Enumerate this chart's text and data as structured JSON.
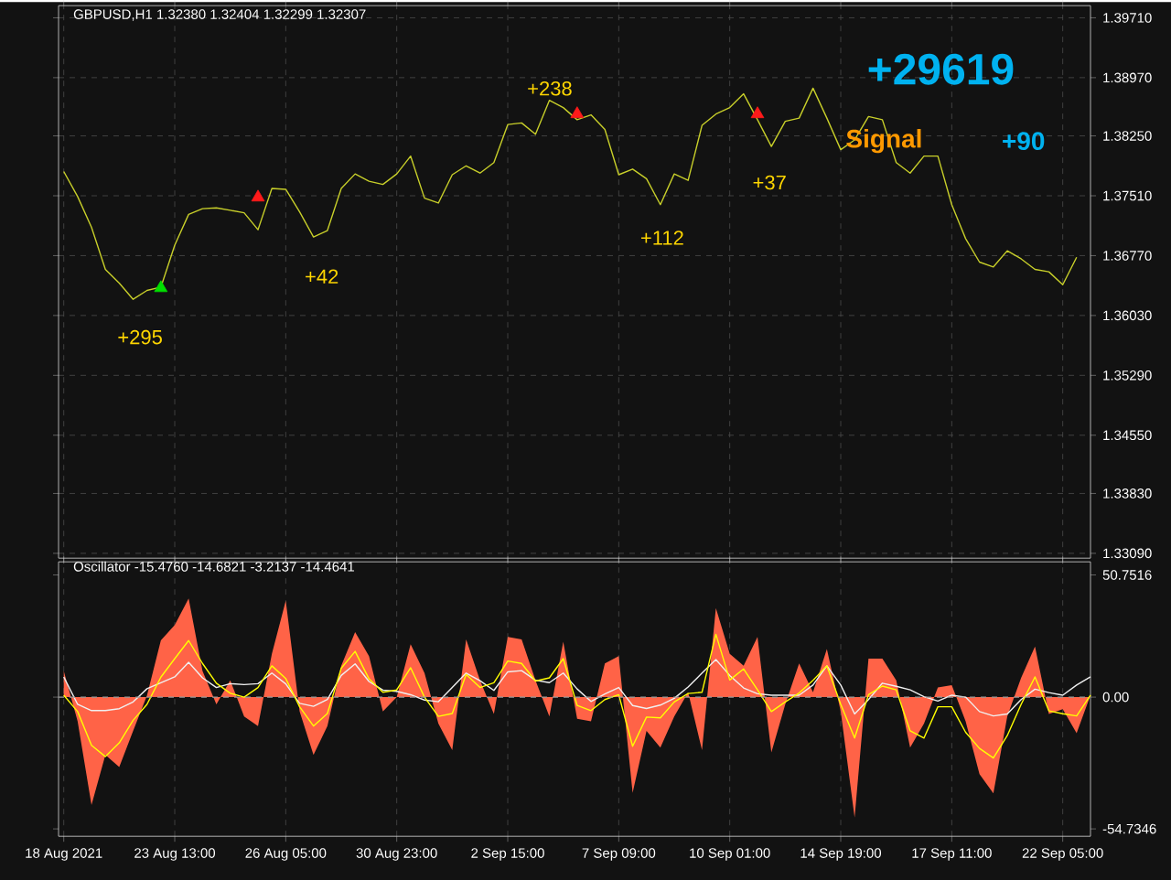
{
  "chart_data": [
    {
      "type": "line",
      "title": "GBPUSD,H1  1.32380 1.32404 1.32299 1.32307",
      "categories": [
        null,
        null,
        null,
        null,
        null,
        null,
        null,
        null,
        null,
        null,
        null,
        null,
        null,
        null,
        null,
        null,
        null,
        null,
        null,
        null,
        null,
        null,
        null,
        null,
        null,
        null,
        null,
        null,
        null,
        null,
        null,
        null,
        null,
        null,
        null,
        null,
        null,
        null,
        null,
        null,
        null,
        null,
        null,
        null,
        null,
        null,
        null,
        null,
        null,
        null,
        null,
        null,
        null,
        null,
        null,
        null,
        null,
        null,
        null,
        null,
        null,
        null,
        null,
        null,
        null,
        null,
        null,
        null,
        null,
        null,
        null,
        null,
        null,
        null,
        null
      ],
      "series": [
        {
          "color": "#c8cf2a",
          "values": [
            1.3781,
            1.375,
            1.3712,
            1.366,
            1.3643,
            1.3623,
            1.3634,
            1.3638,
            1.369,
            1.3728,
            1.3735,
            1.3736,
            1.3733,
            1.373,
            1.3709,
            1.376,
            1.3759,
            1.3731,
            1.37,
            1.3708,
            1.376,
            1.3778,
            1.3769,
            1.3765,
            1.3778,
            1.38,
            1.3748,
            1.3742,
            1.3777,
            1.3788,
            1.3779,
            1.3792,
            1.3839,
            1.3841,
            1.3827,
            1.3869,
            1.386,
            1.3845,
            1.3851,
            1.3833,
            1.3777,
            1.3784,
            1.3772,
            1.374,
            1.3778,
            1.377,
            1.3838,
            1.3852,
            1.386,
            1.3877,
            1.3845,
            1.3812,
            1.3843,
            1.3847,
            1.3884,
            1.3847,
            1.3808,
            1.382,
            1.3849,
            1.3845,
            1.3792,
            1.3779,
            1.38,
            1.38,
            1.374,
            1.3698,
            1.3669,
            1.3663,
            1.3683,
            1.3673,
            1.366,
            1.3657,
            1.3641,
            1.3675,
            null
          ]
        },
        {
          "type": "scatter",
          "marker": "triangle",
          "color": "#00e000",
          "values": [
            null,
            null,
            null,
            null,
            null,
            null,
            null,
            1.3637,
            null,
            null,
            null,
            null,
            null,
            null,
            null,
            null,
            null,
            null,
            null,
            null,
            null,
            null,
            null,
            null,
            null,
            null,
            null,
            null,
            null,
            null,
            null,
            null,
            null,
            null,
            null,
            null,
            null,
            null,
            null,
            null,
            null,
            null,
            null,
            null,
            null,
            null,
            null,
            null,
            null,
            null,
            null,
            null,
            null,
            null,
            null,
            null,
            null,
            null,
            null,
            null,
            null,
            null,
            null,
            null,
            null,
            null,
            null,
            null,
            null,
            null,
            null,
            null,
            null,
            null,
            null
          ]
        },
        {
          "type": "scatter",
          "marker": "triangle",
          "color": "#ff1a1a",
          "values": [
            null,
            null,
            null,
            null,
            null,
            null,
            null,
            null,
            null,
            null,
            null,
            null,
            null,
            null,
            1.3749,
            null,
            null,
            null,
            null,
            null,
            null,
            null,
            null,
            null,
            null,
            null,
            null,
            null,
            null,
            null,
            null,
            null,
            null,
            null,
            null,
            null,
            null,
            1.3852,
            null,
            null,
            null,
            null,
            null,
            null,
            null,
            null,
            null,
            null,
            null,
            null,
            1.3852,
            null,
            null,
            null,
            null,
            null,
            null,
            null,
            null,
            null,
            null,
            null,
            null,
            null,
            null,
            null,
            null,
            null,
            null,
            null,
            null,
            null,
            null,
            null,
            null
          ]
        }
      ],
      "annotations": [
        "+295",
        "+42",
        "+238",
        "+112",
        "+37",
        "+29619",
        "Signal",
        "+90"
      ],
      "ylim": [
        1.3303,
        1.3986
      ],
      "yticks": [
        {
          "value": 1.3971,
          "label": "1.39710"
        },
        {
          "value": 1.3897,
          "label": "1.38970"
        },
        {
          "value": 1.3825,
          "label": "1.38250"
        },
        {
          "value": 1.3751,
          "label": "1.37510"
        },
        {
          "value": 1.3677,
          "label": "1.36770"
        },
        {
          "value": 1.3603,
          "label": "1.36030"
        },
        {
          "value": 1.3529,
          "label": "1.35290"
        },
        {
          "value": 1.3455,
          "label": "1.34550"
        },
        {
          "value": 1.3383,
          "label": "1.33830"
        },
        {
          "value": 1.3309,
          "label": "1.33090"
        }
      ],
      "grid": true,
      "tick_labels": "y"
    },
    {
      "type": "line",
      "title": "Oscillator -15.4760 -14.6821 -3.2137 -14.4641",
      "categories": [
        "18 Aug 2021",
        null,
        null,
        null,
        null,
        null,
        null,
        null,
        "23 Aug 13:00",
        null,
        null,
        null,
        null,
        null,
        null,
        null,
        "26 Aug 05:00",
        null,
        null,
        null,
        null,
        null,
        null,
        null,
        "30 Aug 23:00",
        null,
        null,
        null,
        null,
        null,
        null,
        null,
        "2 Sep 15:00",
        null,
        null,
        null,
        null,
        null,
        null,
        null,
        "7 Sep 09:00",
        null,
        null,
        null,
        null,
        null,
        null,
        null,
        "10 Sep 01:00",
        null,
        null,
        null,
        null,
        null,
        null,
        null,
        "14 Sep 19:00",
        null,
        null,
        null,
        null,
        null,
        null,
        null,
        "17 Sep 11:00",
        null,
        null,
        null,
        null,
        null,
        null,
        null,
        "22 Sep 05:00",
        null,
        null
      ],
      "series": [
        {
          "type": "area",
          "color": "#ff6347",
          "values": [
            10.9,
            -10,
            -44.8,
            -24,
            -29,
            -14,
            0.7,
            23.6,
            30,
            41,
            10.9,
            -3,
            7,
            -8,
            -12,
            18,
            40,
            -6,
            -24,
            -12,
            13,
            27,
            17,
            -6,
            0,
            22,
            10,
            -11,
            -22,
            24,
            7,
            -7,
            25,
            24,
            7,
            -8,
            23,
            -9,
            -10,
            14,
            17,
            -39.8,
            -14,
            -21,
            -8,
            2,
            -22,
            37,
            18,
            13,
            25,
            -23,
            -3,
            14,
            2,
            20,
            -6,
            -50,
            16,
            16,
            7,
            -21,
            -11,
            4,
            5,
            -10,
            -32,
            -40,
            -8,
            8,
            21,
            -7,
            -5,
            -15,
            0.8
          ]
        },
        {
          "type": "line",
          "color": "#f0f0f0",
          "values": [
            8.4,
            -3,
            -5.6,
            -5.6,
            -4.8,
            -2,
            3.5,
            6,
            8.4,
            14.5,
            8,
            4,
            5.6,
            5.2,
            5.6,
            10,
            5.5,
            -2.6,
            -3.8,
            -1,
            9,
            13.8,
            6.5,
            2.9,
            2.4,
            1,
            -1.2,
            -1.9,
            4,
            10,
            6.8,
            2.8,
            10.5,
            11,
            7,
            6,
            10,
            3.4,
            -1.8,
            1.3,
            4,
            -3.5,
            -4.7,
            -3.3,
            -0.5,
            4.2,
            10,
            15.6,
            9,
            3.8,
            1.4,
            0.8,
            0.8,
            0.8,
            5,
            13,
            5,
            -7,
            -1,
            5.8,
            4.5,
            3,
            0.2,
            -1.6,
            0.8,
            0,
            -6,
            -7.8,
            -7,
            -1,
            3.3,
            1.9,
            0.8,
            5,
            8.4
          ]
        },
        {
          "type": "line",
          "color": "#ffff00",
          "values": [
            0.8,
            -6,
            -20,
            -24.7,
            -19,
            -9.6,
            -3,
            8.3,
            16,
            23.5,
            14,
            5.8,
            1.6,
            0,
            4,
            13,
            7.7,
            -4,
            -12,
            -6.8,
            12,
            19,
            7.6,
            2,
            3,
            12.2,
            0,
            -8,
            -6.8,
            9.4,
            4,
            6,
            15,
            14,
            6.7,
            8,
            16,
            -3.4,
            -5.6,
            -1,
            1,
            -20.4,
            -8.3,
            -8.6,
            -2,
            1.5,
            2,
            26.1,
            7.1,
            11.7,
            3,
            -6,
            -2,
            1.7,
            7,
            13,
            -3,
            -17,
            1,
            4.6,
            3,
            -14,
            -17,
            -4,
            -4,
            -14.6,
            -21.3,
            -25.3,
            -16,
            -3,
            8.4,
            -5.7,
            -6.9,
            -7.8,
            0.8
          ]
        }
      ],
      "ylim": [
        -57.8,
        56.2
      ],
      "yticks": [
        50.7516,
        {
          "value": 0,
          "label": "0.00"
        },
        -54.7346
      ],
      "grid": "x",
      "ref_lines": [
        {
          "axis": "y",
          "value": 0,
          "line_style": "dashed"
        }
      ]
    }
  ]
}
